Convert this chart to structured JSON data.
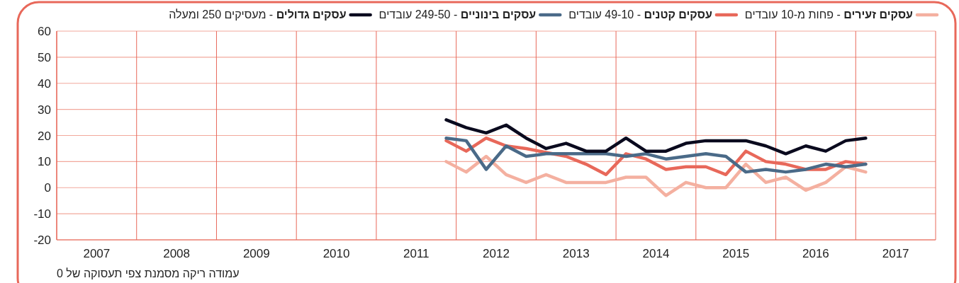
{
  "chart_data": {
    "type": "line",
    "x": [
      2011.875,
      2012.125,
      2012.375,
      2012.625,
      2012.875,
      2013.125,
      2013.375,
      2013.625,
      2013.875,
      2014.125,
      2014.375,
      2014.625,
      2014.875,
      2015.125,
      2015.375,
      2015.625,
      2015.875,
      2016.125,
      2016.375,
      2016.625,
      2016.875,
      2017.125
    ],
    "series": [
      {
        "name": "עסקים זעירים - פחות מ-10 עובדים",
        "color": "#f4b0a0",
        "values": [
          10,
          6,
          12,
          5,
          2,
          5,
          2,
          2,
          2,
          4,
          4,
          -3,
          2,
          0,
          0,
          9,
          2,
          4,
          -1,
          2,
          8,
          6
        ]
      },
      {
        "name": "עסקים קטנים - 49-10 עובדים",
        "color": "#e8685a",
        "values": [
          18,
          14,
          19,
          16,
          15,
          13.5,
          12,
          9,
          5,
          13,
          11,
          7,
          8,
          8,
          5,
          14,
          10,
          9,
          7,
          7,
          10,
          9
        ]
      },
      {
        "name": "עסקים בינוניים - 249-50 עובדים",
        "color": "#4a6a88",
        "values": [
          19,
          18,
          7,
          16,
          12,
          13,
          13,
          13,
          13,
          12,
          13,
          11,
          12,
          13,
          12,
          6,
          7,
          6,
          7,
          9,
          8,
          9
        ]
      },
      {
        "name": "עסקים גדולים - מעסיקים 250 ומעלה",
        "color": "#0a0a1e",
        "values": [
          26,
          23,
          21,
          24,
          19,
          15,
          17,
          14,
          14,
          19,
          14,
          14,
          17,
          18,
          18,
          18,
          16,
          13,
          16,
          14,
          18,
          19
        ]
      }
    ],
    "xlim": [
      2007,
      2018
    ],
    "xticks": [
      {
        "value": 2007,
        "label": null
      },
      {
        "value": 2007.5,
        "label": "2007"
      },
      {
        "value": 2008,
        "label": null
      },
      {
        "value": 2008.5,
        "label": "2008"
      },
      {
        "value": 2009,
        "label": null
      },
      {
        "value": 2009.5,
        "label": "2009"
      },
      {
        "value": 2010,
        "label": null
      },
      {
        "value": 2010.5,
        "label": "2010"
      },
      {
        "value": 2011,
        "label": null
      },
      {
        "value": 2011.5,
        "label": "2011"
      },
      {
        "value": 2012,
        "label": null
      },
      {
        "value": 2012.5,
        "label": "2012"
      },
      {
        "value": 2013,
        "label": null
      },
      {
        "value": 2013.5,
        "label": "2013"
      },
      {
        "value": 2014,
        "label": null
      },
      {
        "value": 2014.5,
        "label": "2014"
      },
      {
        "value": 2015,
        "label": null
      },
      {
        "value": 2015.5,
        "label": "2015"
      },
      {
        "value": 2016,
        "label": null
      },
      {
        "value": 2016.5,
        "label": "2016"
      },
      {
        "value": 2017,
        "label": null
      },
      {
        "value": 2017.5,
        "label": "2017"
      },
      {
        "value": 2018,
        "label": null
      }
    ],
    "ylim": [
      -20,
      60
    ],
    "yticks": [
      -20,
      -10,
      0,
      10,
      20,
      30,
      40,
      50,
      60
    ],
    "grid": true,
    "legend": "top",
    "marker": "none",
    "line_style": "solid",
    "annotations": [
      "עמודה ריקה מסמנת צפי תעסוקה של 0"
    ]
  }
}
